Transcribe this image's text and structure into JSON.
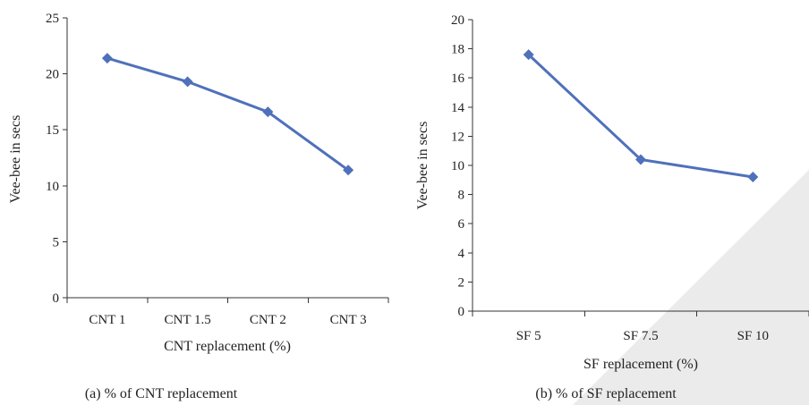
{
  "chart_data": [
    {
      "type": "line",
      "categories": [
        "CNT 1",
        "CNT 1.5",
        "CNT 2",
        "CNT 3"
      ],
      "series": [
        {
          "values": [
            21.4,
            19.3,
            16.6,
            11.4
          ]
        }
      ],
      "xlabel": "CNT replacement (%)",
      "ylabel": "Vee-bee in secs",
      "ylim": [
        0,
        25
      ],
      "yticks": [
        0,
        5,
        10,
        15,
        20,
        25
      ],
      "caption": "(a) % of CNT replacement",
      "grid": false,
      "color": "#4f71bb"
    },
    {
      "type": "line",
      "categories": [
        "SF 5",
        "SF 7.5",
        "SF 10"
      ],
      "series": [
        {
          "values": [
            17.6,
            10.4,
            9.2
          ]
        }
      ],
      "xlabel": "SF replacement (%)",
      "ylabel": "Vee-bee in secs",
      "ylim": [
        0,
        20
      ],
      "yticks": [
        0,
        2,
        4,
        6,
        8,
        10,
        12,
        14,
        16,
        18,
        20
      ],
      "caption": "(b) % of SF replacement",
      "grid": false,
      "color": "#4f71bb"
    }
  ]
}
